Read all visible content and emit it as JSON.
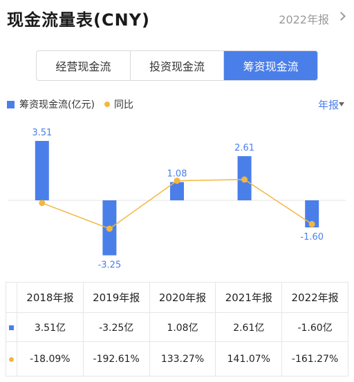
{
  "header": {
    "title": "现金流量表(CNY)",
    "period": "2022年报"
  },
  "tabs": [
    {
      "label": "经营现金流",
      "active": false
    },
    {
      "label": "投资现金流",
      "active": false
    },
    {
      "label": "筹资现金流",
      "active": true
    }
  ],
  "legend": {
    "bar_label": "筹资现金流(亿元)",
    "line_label": "同比"
  },
  "frequency": "年报",
  "colors": {
    "bar": "#4a7fea",
    "line": "#f2b73f",
    "positive": "#e04040",
    "negative": "#2aa36b"
  },
  "chart_data": {
    "type": "bar",
    "categories": [
      "2018年报",
      "2019年报",
      "2020年报",
      "2021年报",
      "2022年报"
    ],
    "series": [
      {
        "name": "筹资现金流(亿元)",
        "type": "bar",
        "values": [
          3.51,
          -3.25,
          1.08,
          2.61,
          -1.6
        ],
        "labels": [
          "3.51",
          "-3.25",
          "1.08",
          "2.61",
          "-1.60"
        ]
      },
      {
        "name": "同比",
        "type": "line",
        "values": [
          -18.09,
          -192.61,
          133.27,
          141.07,
          -161.27
        ]
      }
    ]
  },
  "table": {
    "headers": [
      "2018年报",
      "2019年报",
      "2020年报",
      "2021年报",
      "2022年报"
    ],
    "values": [
      "3.51亿",
      "-3.25亿",
      "1.08亿",
      "2.61亿",
      "-1.60亿"
    ],
    "yoy": [
      "-18.09%",
      "-192.61%",
      "133.27%",
      "141.07%",
      "-161.27%"
    ]
  }
}
